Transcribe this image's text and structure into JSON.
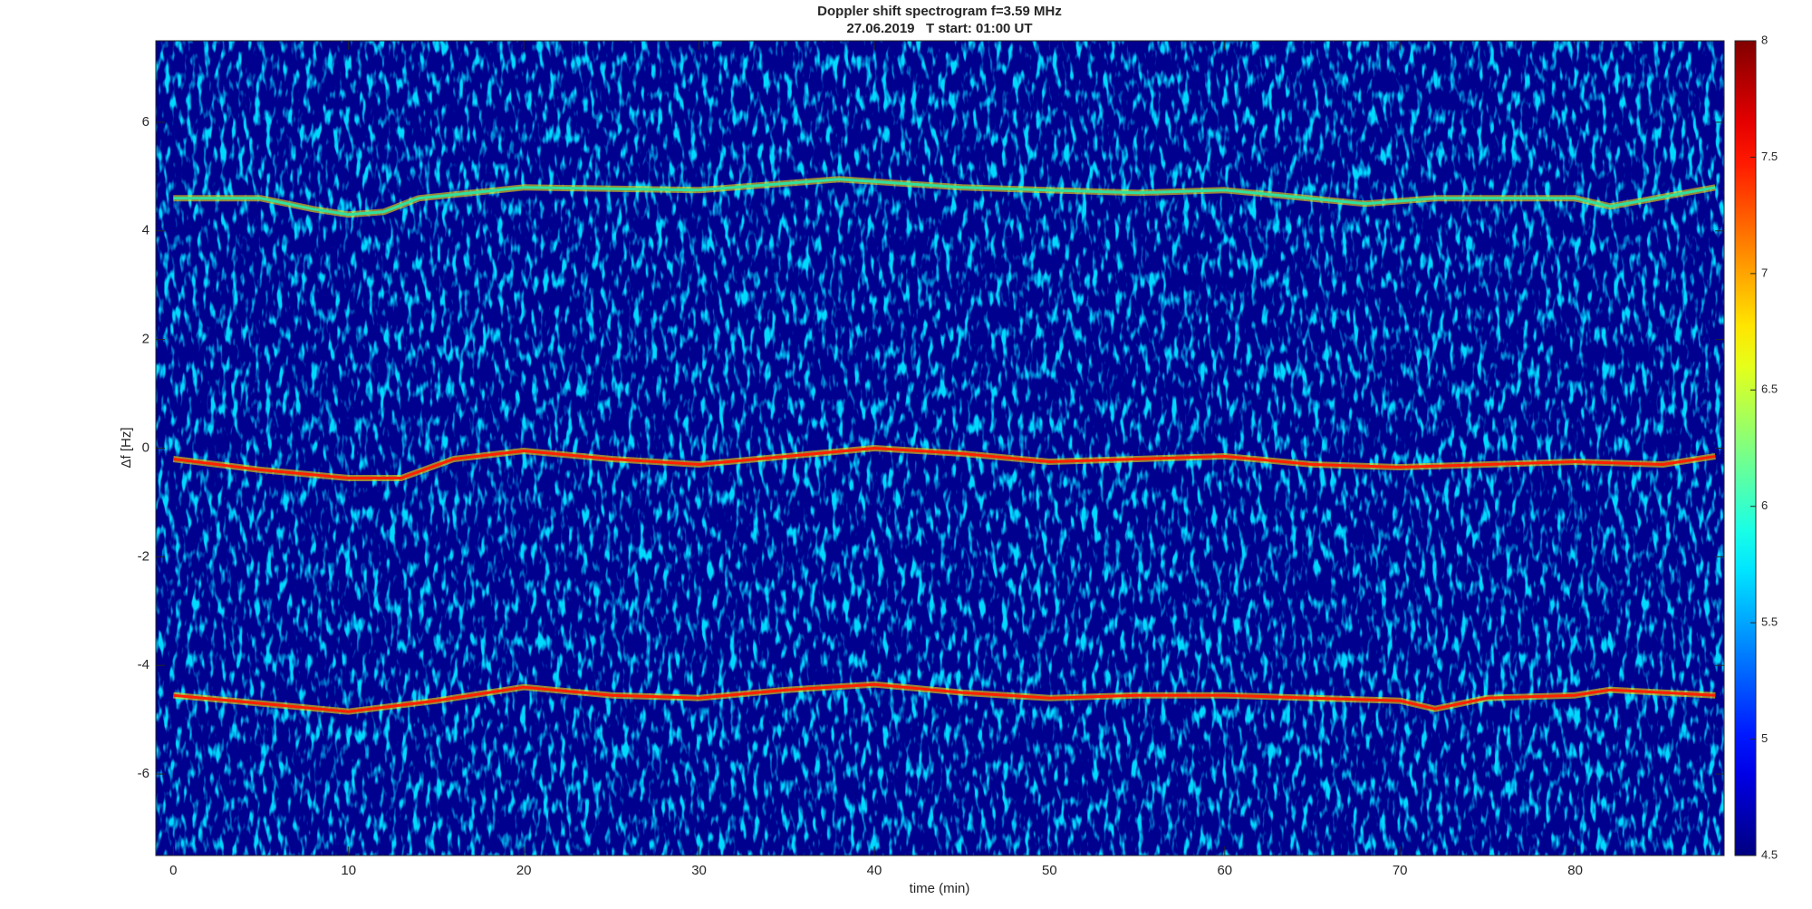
{
  "chart_data": {
    "type": "line",
    "title": "Doppler shift spectrogram f=3.59 MHz",
    "subtitle": "27.06.2019   T start: 01:00 UT",
    "x_label": "time (min)",
    "y_label": "Δf [Hz]",
    "xlim": [
      -1,
      88.5
    ],
    "ylim": [
      -7.5,
      7.5
    ],
    "xticks": [
      0,
      10,
      20,
      30,
      40,
      50,
      60,
      70,
      80
    ],
    "yticks": [
      -6,
      -4,
      -2,
      0,
      2,
      4,
      6
    ],
    "background_color": "#00008f",
    "series": [
      {
        "color": "#30e0a0",
        "x": [
          0,
          5,
          8,
          10,
          12,
          14,
          20,
          30,
          38,
          45,
          55,
          60,
          68,
          72,
          80,
          82,
          88
        ],
        "values": [
          4.6,
          4.6,
          4.4,
          4.3,
          4.35,
          4.6,
          4.8,
          4.75,
          4.95,
          4.8,
          4.7,
          4.75,
          4.5,
          4.6,
          4.6,
          4.45,
          4.8
        ]
      },
      {
        "color": "#ff2000",
        "x": [
          0,
          5,
          10,
          13,
          16,
          20,
          25,
          30,
          35,
          40,
          45,
          50,
          55,
          60,
          65,
          70,
          75,
          80,
          85,
          88
        ],
        "values": [
          -0.2,
          -0.4,
          -0.55,
          -0.55,
          -0.2,
          -0.05,
          -0.2,
          -0.3,
          -0.15,
          0,
          -0.1,
          -0.25,
          -0.2,
          -0.15,
          -0.3,
          -0.35,
          -0.3,
          -0.25,
          -0.3,
          -0.15
        ]
      },
      {
        "color": "#ff2000",
        "x": [
          0,
          5,
          10,
          15,
          20,
          25,
          30,
          35,
          40,
          45,
          50,
          55,
          60,
          65,
          70,
          72,
          75,
          80,
          82,
          85,
          88
        ],
        "values": [
          -4.55,
          -4.7,
          -4.85,
          -4.65,
          -4.4,
          -4.55,
          -4.6,
          -4.45,
          -4.35,
          -4.5,
          -4.6,
          -4.55,
          -4.55,
          -4.6,
          -4.65,
          -4.8,
          -4.6,
          -4.55,
          -4.45,
          -4.5,
          -4.55
        ]
      }
    ],
    "colorbar": {
      "colormap": "jet",
      "lim": [
        4.5,
        8
      ],
      "ticks": [
        4.5,
        5,
        5.5,
        6,
        6.5,
        7,
        7.5,
        8
      ]
    }
  }
}
